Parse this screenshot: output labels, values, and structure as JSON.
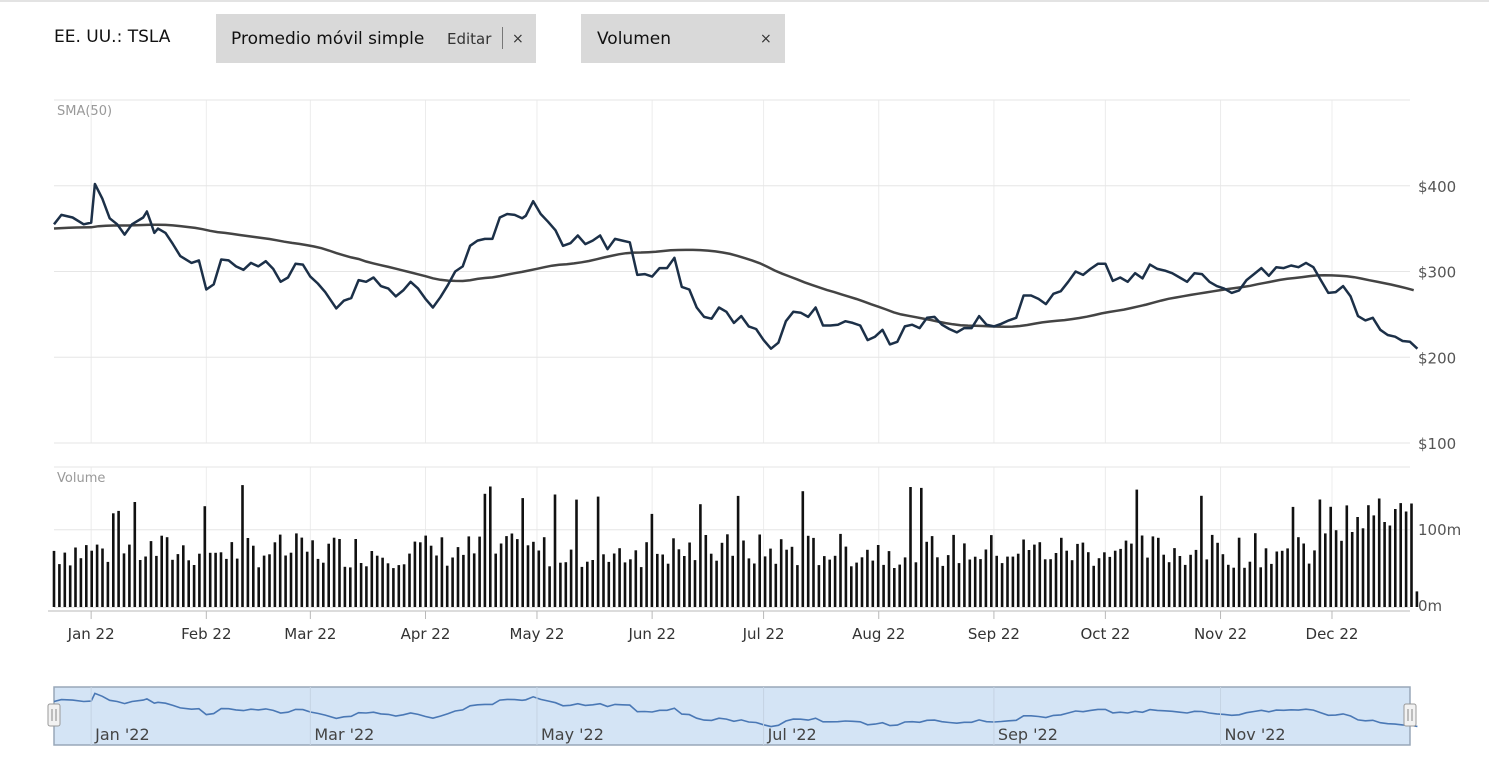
{
  "header": {
    "symbol": "EE. UU.: TSLA",
    "indicator_label": "Promedio móvil simple",
    "edit_label": "Editar",
    "indicator_close": "×",
    "volume_label": "Volumen",
    "volume_close": "×"
  },
  "chart_data": {
    "type": "line",
    "panels": {
      "price_title": "SMA(50)",
      "volume_title": "Volume"
    },
    "y_price": {
      "min": 100,
      "max": 500,
      "ticks": [
        {
          "v": 100,
          "label": "$100"
        },
        {
          "v": 200,
          "label": "$200"
        },
        {
          "v": 300,
          "label": "$300"
        },
        {
          "v": 400,
          "label": "$400"
        }
      ]
    },
    "y_volume": {
      "min": 0,
      "max": 180,
      "ticks": [
        {
          "v": 0,
          "label": "0m"
        },
        {
          "v": 100,
          "label": "100m"
        }
      ]
    },
    "x_range_days": [
      -10,
      355
    ],
    "months": [
      {
        "day": 0,
        "label": "Jan 22"
      },
      {
        "day": 31,
        "label": "Feb 22"
      },
      {
        "day": 59,
        "label": "Mar 22"
      },
      {
        "day": 90,
        "label": "Apr 22"
      },
      {
        "day": 120,
        "label": "May 22"
      },
      {
        "day": 151,
        "label": "Jun 22"
      },
      {
        "day": 181,
        "label": "Jul 22"
      },
      {
        "day": 212,
        "label": "Aug 22"
      },
      {
        "day": 243,
        "label": "Sep 22"
      },
      {
        "day": 273,
        "label": "Oct 22"
      },
      {
        "day": 304,
        "label": "Nov 22"
      },
      {
        "day": 334,
        "label": "Dec 22"
      }
    ],
    "navigator_labels": [
      {
        "day": 0,
        "label": "Jan '22"
      },
      {
        "day": 59,
        "label": "Mar '22"
      },
      {
        "day": 120,
        "label": "May '22"
      },
      {
        "day": 181,
        "label": "Jul '22"
      },
      {
        "day": 243,
        "label": "Sep '22"
      },
      {
        "day": 304,
        "label": "Nov '22"
      }
    ],
    "series": [
      {
        "name": "TSLA",
        "color": "#1c3048",
        "points": [
          [
            -10,
            355
          ],
          [
            -8,
            366
          ],
          [
            -5,
            363
          ],
          [
            -2,
            355
          ],
          [
            0,
            357
          ],
          [
            1,
            402
          ],
          [
            3,
            385
          ],
          [
            5,
            362
          ],
          [
            7,
            355
          ],
          [
            9,
            343
          ],
          [
            11,
            355
          ],
          [
            14,
            363
          ],
          [
            15,
            370
          ],
          [
            16,
            358
          ],
          [
            17,
            345
          ],
          [
            18,
            350
          ],
          [
            20,
            345
          ],
          [
            22,
            332
          ],
          [
            24,
            318
          ],
          [
            27,
            310
          ],
          [
            29,
            313
          ],
          [
            31,
            279
          ],
          [
            33,
            285
          ],
          [
            35,
            314
          ],
          [
            37,
            313
          ],
          [
            39,
            306
          ],
          [
            41,
            302
          ],
          [
            43,
            310
          ],
          [
            45,
            306
          ],
          [
            47,
            312
          ],
          [
            49,
            303
          ],
          [
            51,
            288
          ],
          [
            53,
            293
          ],
          [
            55,
            309
          ],
          [
            57,
            308
          ],
          [
            59,
            294
          ],
          [
            61,
            286
          ],
          [
            63,
            276
          ],
          [
            66,
            257
          ],
          [
            68,
            266
          ],
          [
            70,
            269
          ],
          [
            72,
            290
          ],
          [
            74,
            288
          ],
          [
            76,
            293
          ],
          [
            78,
            283
          ],
          [
            80,
            280
          ],
          [
            82,
            271
          ],
          [
            84,
            278
          ],
          [
            86,
            288
          ],
          [
            88,
            280
          ],
          [
            90,
            268
          ],
          [
            92,
            258
          ],
          [
            94,
            270
          ],
          [
            96,
            284
          ],
          [
            98,
            300
          ],
          [
            100,
            306
          ],
          [
            102,
            330
          ],
          [
            104,
            336
          ],
          [
            106,
            338
          ],
          [
            108,
            338
          ],
          [
            110,
            363
          ],
          [
            112,
            367
          ],
          [
            114,
            366
          ],
          [
            116,
            362
          ],
          [
            117,
            365
          ],
          [
            119,
            382
          ],
          [
            121,
            367
          ],
          [
            123,
            358
          ],
          [
            125,
            348
          ],
          [
            127,
            330
          ],
          [
            129,
            333
          ],
          [
            131,
            342
          ],
          [
            133,
            332
          ],
          [
            135,
            336
          ],
          [
            137,
            342
          ],
          [
            139,
            326
          ],
          [
            141,
            338
          ],
          [
            143,
            336
          ],
          [
            145,
            334
          ],
          [
            147,
            296
          ],
          [
            149,
            297
          ],
          [
            151,
            294
          ],
          [
            153,
            304
          ],
          [
            155,
            304
          ],
          [
            157,
            316
          ],
          [
            159,
            282
          ],
          [
            161,
            279
          ],
          [
            163,
            258
          ],
          [
            165,
            247
          ],
          [
            167,
            245
          ],
          [
            169,
            258
          ],
          [
            171,
            253
          ],
          [
            173,
            240
          ],
          [
            175,
            248
          ],
          [
            177,
            236
          ],
          [
            179,
            233
          ],
          [
            181,
            220
          ],
          [
            183,
            210
          ],
          [
            185,
            217
          ],
          [
            187,
            242
          ],
          [
            189,
            253
          ],
          [
            191,
            252
          ],
          [
            193,
            247
          ],
          [
            195,
            258
          ],
          [
            197,
            237
          ],
          [
            199,
            237
          ],
          [
            201,
            238
          ],
          [
            203,
            242
          ],
          [
            205,
            240
          ],
          [
            207,
            237
          ],
          [
            209,
            220
          ],
          [
            211,
            224
          ],
          [
            213,
            232
          ],
          [
            215,
            215
          ],
          [
            217,
            218
          ],
          [
            219,
            236
          ],
          [
            221,
            238
          ],
          [
            223,
            234
          ],
          [
            225,
            246
          ],
          [
            227,
            247
          ],
          [
            229,
            238
          ],
          [
            231,
            233
          ],
          [
            233,
            229
          ],
          [
            235,
            234
          ],
          [
            237,
            234
          ],
          [
            239,
            248
          ],
          [
            241,
            238
          ],
          [
            243,
            236
          ],
          [
            245,
            239
          ],
          [
            247,
            243
          ],
          [
            249,
            246
          ],
          [
            251,
            272
          ],
          [
            253,
            272
          ],
          [
            255,
            268
          ],
          [
            257,
            262
          ],
          [
            259,
            274
          ],
          [
            261,
            277
          ],
          [
            263,
            288
          ],
          [
            265,
            300
          ],
          [
            267,
            296
          ],
          [
            269,
            303
          ],
          [
            271,
            309
          ],
          [
            273,
            309
          ],
          [
            275,
            289
          ],
          [
            277,
            293
          ],
          [
            279,
            288
          ],
          [
            281,
            298
          ],
          [
            283,
            292
          ],
          [
            285,
            308
          ],
          [
            287,
            303
          ],
          [
            289,
            301
          ],
          [
            291,
            298
          ],
          [
            293,
            293
          ],
          [
            295,
            288
          ],
          [
            297,
            298
          ],
          [
            299,
            297
          ],
          [
            301,
            288
          ],
          [
            303,
            283
          ],
          [
            305,
            280
          ],
          [
            307,
            275
          ],
          [
            309,
            278
          ],
          [
            311,
            290
          ],
          [
            313,
            297
          ],
          [
            315,
            304
          ],
          [
            317,
            295
          ],
          [
            319,
            305
          ],
          [
            321,
            304
          ],
          [
            323,
            307
          ],
          [
            325,
            305
          ],
          [
            327,
            310
          ],
          [
            329,
            305
          ],
          [
            331,
            290
          ],
          [
            333,
            275
          ],
          [
            335,
            276
          ],
          [
            337,
            283
          ],
          [
            339,
            271
          ],
          [
            341,
            248
          ],
          [
            343,
            243
          ],
          [
            345,
            246
          ],
          [
            347,
            232
          ],
          [
            349,
            226
          ],
          [
            351,
            224
          ],
          [
            353,
            219
          ],
          [
            355,
            218
          ],
          [
            357,
            210
          ]
        ]
      },
      {
        "name": "SMA(50)",
        "color": "#444444",
        "points": []
      }
    ]
  }
}
